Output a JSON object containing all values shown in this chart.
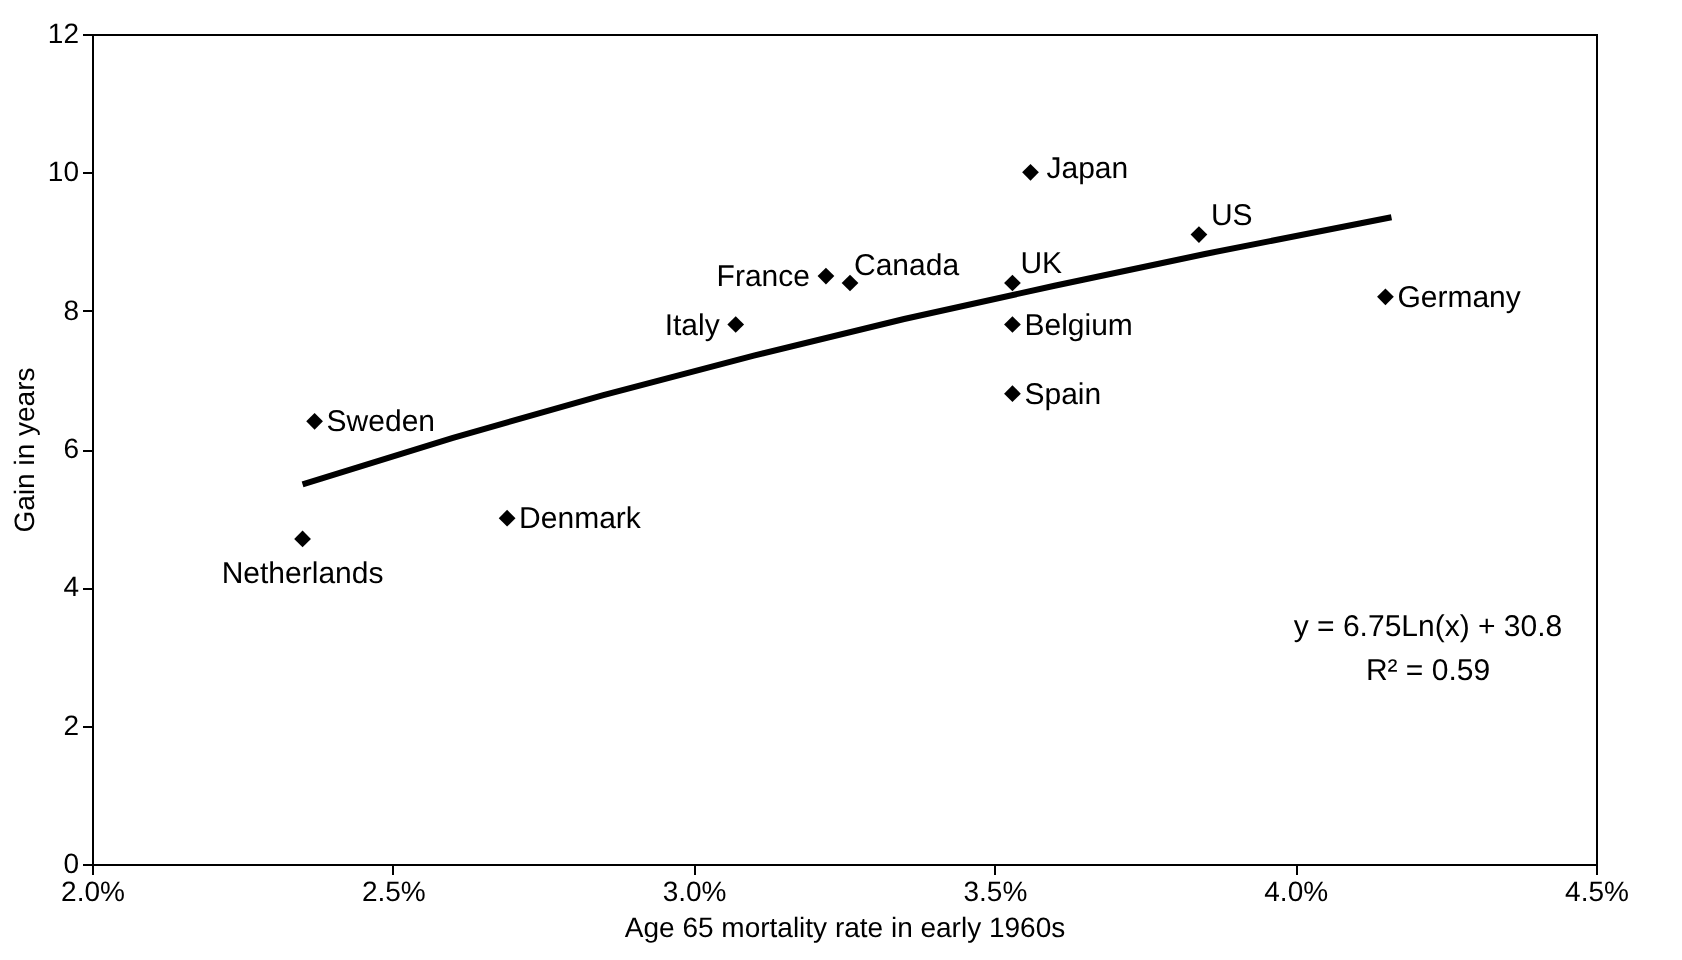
{
  "chart_data": {
    "type": "scatter",
    "xlabel": "Age 65 mortality rate in early 1960s",
    "ylabel": "Gain in years",
    "xlim": [
      2.0,
      4.5
    ],
    "xticks": [
      {
        "value": 2.0,
        "label": "2.0%"
      },
      {
        "value": 2.5,
        "label": "2.5%"
      },
      {
        "value": 3.0,
        "label": "3.0%"
      },
      {
        "value": 3.5,
        "label": "3.5%"
      },
      {
        "value": 4.0,
        "label": "4.0%"
      },
      {
        "value": 4.5,
        "label": "4.5%"
      }
    ],
    "ylim": [
      0,
      12
    ],
    "yticks": [
      0,
      2,
      4,
      6,
      8,
      10,
      12
    ],
    "grid": false,
    "series": [
      {
        "marker": "diamond",
        "color": "#000000",
        "x": [
          2.35,
          2.37,
          2.69,
          3.07,
          3.22,
          3.26,
          3.53,
          3.53,
          3.53,
          3.56,
          3.84,
          4.15
        ],
        "values": [
          4.7,
          6.4,
          5.0,
          7.8,
          8.5,
          8.4,
          8.4,
          7.8,
          6.8,
          10.0,
          9.1,
          8.2
        ]
      },
      {
        "type": "line",
        "color": "#000000",
        "line_style": "solid",
        "x": [
          2.35,
          2.6,
          2.85,
          3.1,
          3.35,
          3.6,
          3.85,
          4.16
        ],
        "values": [
          5.49,
          6.16,
          6.78,
          7.35,
          7.88,
          8.36,
          8.82,
          9.35
        ]
      }
    ],
    "annotations": [
      {
        "text": "Netherlands",
        "x": 2.35,
        "y": 4.7
      },
      {
        "text": "Sweden",
        "x": 2.37,
        "y": 6.4
      },
      {
        "text": "Denmark",
        "x": 2.69,
        "y": 5.0
      },
      {
        "text": "Italy",
        "x": 3.07,
        "y": 7.8
      },
      {
        "text": "France",
        "x": 3.22,
        "y": 8.5
      },
      {
        "text": "Canada",
        "x": 3.26,
        "y": 8.4
      },
      {
        "text": "UK",
        "x": 3.53,
        "y": 8.4
      },
      {
        "text": "Belgium",
        "x": 3.53,
        "y": 7.8
      },
      {
        "text": "Spain",
        "x": 3.53,
        "y": 6.8
      },
      {
        "text": "Japan",
        "x": 3.56,
        "y": 10.0
      },
      {
        "text": "US",
        "x": 3.84,
        "y": 9.1
      },
      {
        "text": "Germany",
        "x": 4.15,
        "y": 8.2
      },
      "y = 6.75Ln(x) + 30.8",
      "R² = 0.59"
    ]
  }
}
